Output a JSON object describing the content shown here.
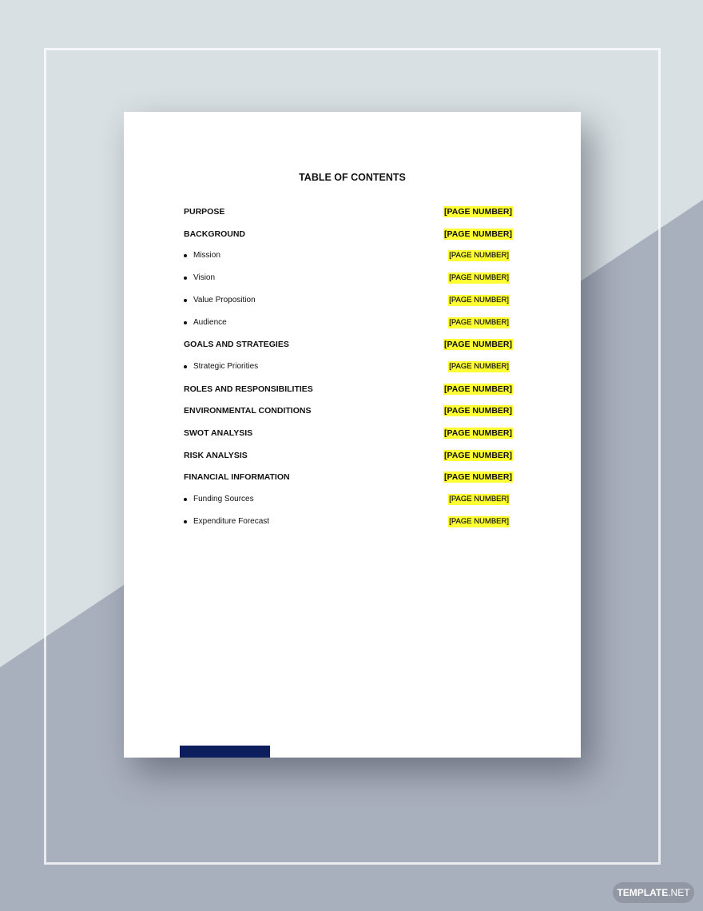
{
  "document": {
    "title": "TABLE OF CONTENTS",
    "entries": [
      {
        "label": "PURPOSE",
        "page": "[PAGE NUMBER]",
        "level": "main"
      },
      {
        "label": "BACKGROUND",
        "page": "[PAGE NUMBER]",
        "level": "main"
      },
      {
        "label": "Mission",
        "page": "[PAGE NUMBER]",
        "level": "sub"
      },
      {
        "label": "Vision",
        "page": "[PAGE NUMBER]",
        "level": "sub"
      },
      {
        "label": "Value Proposition",
        "page": "[PAGE NUMBER]",
        "level": "sub"
      },
      {
        "label": "Audience",
        "page": "[PAGE NUMBER]",
        "level": "sub"
      },
      {
        "label": "GOALS AND STRATEGIES",
        "page": "[PAGE NUMBER]",
        "level": "main"
      },
      {
        "label": "Strategic Priorities",
        "page": "[PAGE NUMBER]",
        "level": "sub"
      },
      {
        "label": "ROLES AND RESPONSIBILITIES",
        "page": "[PAGE NUMBER]",
        "level": "main"
      },
      {
        "label": "ENVIRONMENTAL CONDITIONS",
        "page": "[PAGE NUMBER]",
        "level": "main"
      },
      {
        "label": "SWOT ANALYSIS",
        "page": "[PAGE NUMBER]",
        "level": "main"
      },
      {
        "label": "RISK ANALYSIS",
        "page": "[PAGE NUMBER]",
        "level": "main"
      },
      {
        "label": "FINANCIAL INFORMATION",
        "page": "[PAGE NUMBER]",
        "level": "main"
      },
      {
        "label": "Funding Sources",
        "page": "[PAGE NUMBER]",
        "level": "sub"
      },
      {
        "label": "Expenditure Forecast",
        "page": "[PAGE NUMBER]",
        "level": "sub"
      }
    ]
  },
  "watermark": {
    "brand_bold": "TEMPLATE",
    "brand_rest": ".NET"
  },
  "colors": {
    "highlight": "#ffff33",
    "accent_bar": "#0c1f5c",
    "background_light": "#d9e0e3",
    "background_dark": "#a9b0bd"
  }
}
